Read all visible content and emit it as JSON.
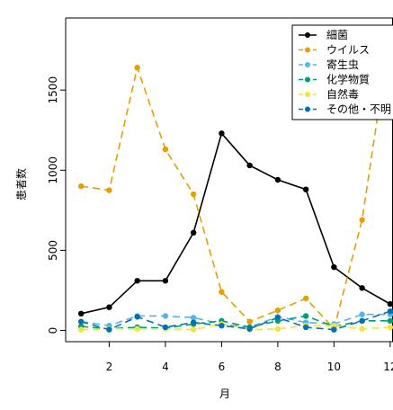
{
  "chart_data": {
    "type": "line",
    "title": "",
    "xlabel": "月",
    "ylabel": "患者数",
    "x": [
      1,
      2,
      3,
      4,
      5,
      6,
      7,
      8,
      9,
      10,
      11,
      12
    ],
    "xlim": [
      0.45,
      12.1
    ],
    "ylim": [
      -70,
      1950
    ],
    "xticks": [
      2,
      4,
      6,
      8,
      10,
      12
    ],
    "xtick_labels": [
      "2",
      "4",
      "6",
      "8",
      "10",
      "12"
    ],
    "yticks": [
      0,
      500,
      1000,
      1500
    ],
    "ytick_labels": [
      "0",
      "500",
      "1000",
      "1500"
    ],
    "grid": false,
    "legend_position": "top-right",
    "series": [
      {
        "name": "細菌",
        "color": "#000000",
        "dash": "solid",
        "values": [
          105,
          145,
          310,
          310,
          610,
          1230,
          1030,
          940,
          880,
          395,
          265,
          165
        ]
      },
      {
        "name": "ウイルス",
        "color": "#E69F00",
        "dash": "dashed",
        "values": [
          900,
          875,
          1640,
          1130,
          850,
          240,
          55,
          125,
          200,
          10,
          690,
          1860
        ]
      },
      {
        "name": "寄生虫",
        "color": "#56B4E9",
        "dash": "dashed",
        "values": [
          55,
          30,
          90,
          90,
          80,
          40,
          20,
          85,
          50,
          40,
          100,
          100
        ]
      },
      {
        "name": "化学物質",
        "color": "#009E73",
        "dash": "dashed",
        "values": [
          25,
          10,
          20,
          15,
          40,
          60,
          20,
          60,
          90,
          25,
          60,
          60
        ]
      },
      {
        "name": "自然毒",
        "color": "#F0E442",
        "dash": "dashed",
        "values": [
          5,
          10,
          10,
          10,
          5,
          40,
          5,
          10,
          30,
          30,
          10,
          20
        ]
      },
      {
        "name": "その他・不明",
        "color": "#0072B2",
        "dash": "dashed",
        "values": [
          55,
          5,
          85,
          20,
          50,
          30,
          10,
          80,
          20,
          5,
          60,
          120
        ]
      }
    ]
  }
}
